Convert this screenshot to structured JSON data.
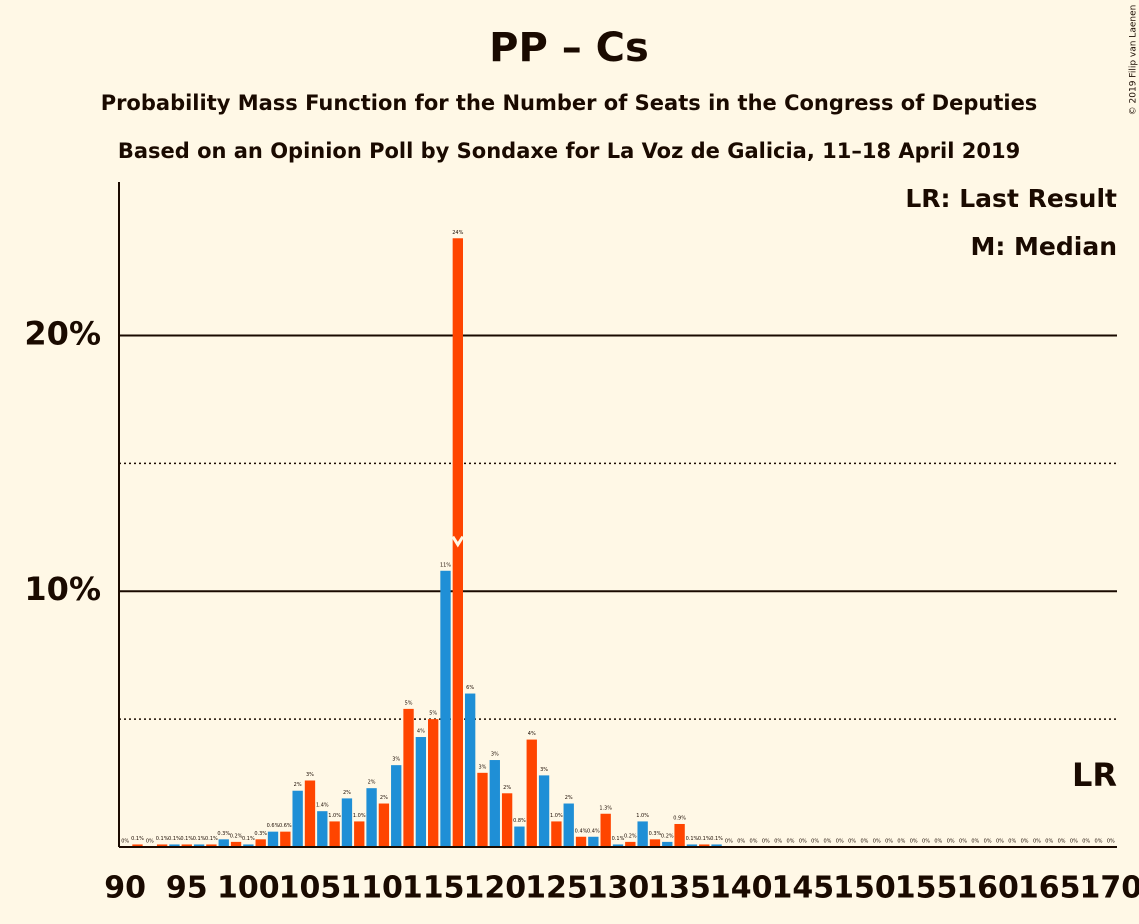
{
  "chart_data": {
    "type": "bar",
    "title": "PP – Cs",
    "subtitle": [
      "Probability Mass Function for the Number of Seats in the Congress of Deputies",
      "Based on an Opinion Poll by Sondaxe for La Voz de Galicia, 11–18 April 2019"
    ],
    "credit": "© 2019 Filip van Laenen",
    "legend": [
      "LR: Last Result",
      "M: Median"
    ],
    "x": [
      90,
      91,
      92,
      93,
      94,
      95,
      96,
      97,
      98,
      99,
      100,
      101,
      102,
      103,
      104,
      105,
      106,
      107,
      108,
      109,
      110,
      111,
      112,
      113,
      114,
      115,
      116,
      117,
      118,
      119,
      120,
      121,
      122,
      123,
      124,
      125,
      126,
      127,
      128,
      129,
      130,
      131,
      132,
      133,
      134,
      135,
      136,
      137,
      138,
      139,
      140,
      141,
      142,
      143,
      144,
      145,
      146,
      147,
      148,
      149,
      150,
      151,
      152,
      153,
      154,
      155,
      156,
      157,
      158,
      159,
      160,
      161,
      162,
      163,
      164,
      165,
      166,
      167,
      168,
      169,
      170
    ],
    "values": [
      0,
      0.1,
      0,
      0.1,
      0.1,
      0.1,
      0.1,
      0.1,
      0.3,
      0.2,
      0.1,
      0.3,
      0.6,
      0.6,
      2.2,
      2.6,
      1.4,
      1.0,
      1.9,
      1.0,
      2.3,
      1.7,
      3.2,
      5.4,
      4.3,
      5.0,
      10.8,
      23.8,
      6.0,
      2.9,
      3.4,
      2.1,
      0.8,
      4.2,
      2.8,
      1.0,
      1.7,
      0.4,
      0.4,
      1.3,
      0.1,
      0.2,
      1.0,
      0.3,
      0.2,
      0.9,
      0.1,
      0.1,
      0.1,
      0,
      0,
      0,
      0,
      0,
      0,
      0,
      0,
      0,
      0,
      0,
      0,
      0,
      0,
      0,
      0,
      0,
      0,
      0,
      0,
      0,
      0,
      0,
      0,
      0,
      0,
      0,
      0,
      0,
      0,
      0,
      0
    ],
    "value_labels": [
      "0%",
      "0.1%",
      "0%",
      "0.1%",
      "0.1%",
      "0.1%",
      "0.1%",
      "0.1%",
      "0.3%",
      "0.2%",
      "0.1%",
      "0.3%",
      "0.6%",
      "0.6%",
      "2%",
      "3%",
      "1.4%",
      "1.0%",
      "2%",
      "1.0%",
      "2%",
      "2%",
      "3%",
      "5%",
      "4%",
      "5%",
      "11%",
      "24%",
      "6%",
      "3%",
      "3%",
      "2%",
      "0.8%",
      "4%",
      "3%",
      "1.0%",
      "2%",
      "0.4%",
      "0.4%",
      "1.3%",
      "0.1%",
      "0.2%",
      "1.0%",
      "0.3%",
      "0.2%",
      "0.9%",
      "0.1%",
      "0.1%",
      "0.1%",
      "0%",
      "0%",
      "0%",
      "0%",
      "0%",
      "0%",
      "0%",
      "0%",
      "0%",
      "0%",
      "0%",
      "0%",
      "0%",
      "0%",
      "0%",
      "0%",
      "0%",
      "0%",
      "0%",
      "0%",
      "0%",
      "0%",
      "0%",
      "0%",
      "0%",
      "0%",
      "0%",
      "0%",
      "0%",
      "0%",
      "0%",
      "0%"
    ],
    "colors": [
      "#1f8fd6",
      "#ff4500"
    ],
    "xlim": [
      89.5,
      170.5
    ],
    "xticks": [
      90,
      95,
      100,
      105,
      110,
      115,
      120,
      125,
      130,
      135,
      140,
      145,
      150,
      155,
      160,
      165,
      170
    ],
    "ylim": [
      0,
      26
    ],
    "yticks": [
      {
        "value": 10,
        "label": "10%"
      },
      {
        "value": 20,
        "label": "20%"
      }
    ],
    "minor_yticks": [
      5,
      15
    ],
    "median": 117,
    "annotations": [
      {
        "label": "LR",
        "x": 170
      }
    ]
  }
}
